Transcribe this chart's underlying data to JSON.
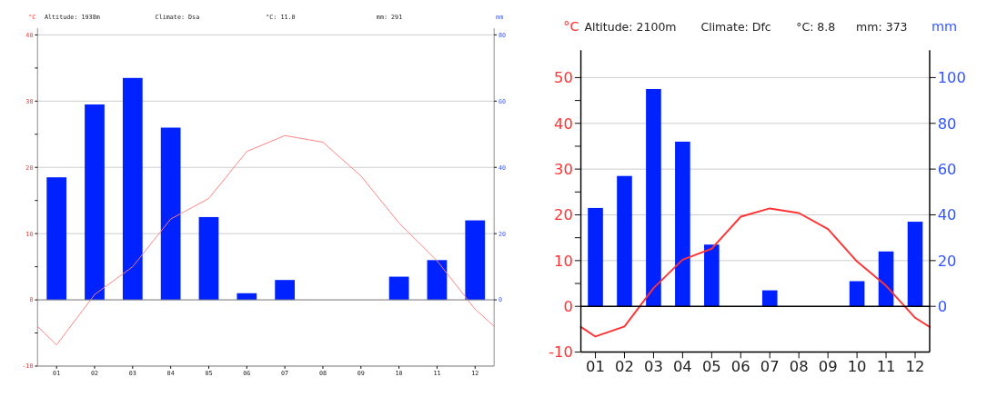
{
  "chart_data": [
    {
      "type": "bar",
      "annotations": [
        "Altitude: 1938m",
        "Climate: Dsa",
        "°C: 11.0",
        "mm: 291"
      ],
      "ylabel": "°C",
      "y2label": "mm",
      "grid": "y",
      "x": [
        1,
        2,
        3,
        4,
        5,
        6,
        7,
        8,
        9,
        10,
        11,
        12
      ],
      "xlim": [
        0.5,
        12.5
      ],
      "xticks": [
        {
          "value": 1,
          "label": "01"
        },
        {
          "value": 2,
          "label": "02"
        },
        {
          "value": 3,
          "label": "03"
        },
        {
          "value": 4,
          "label": "04"
        },
        {
          "value": 5,
          "label": "05"
        },
        {
          "value": 6,
          "label": "06"
        },
        {
          "value": 7,
          "label": "07"
        },
        {
          "value": 8,
          "label": "08"
        },
        {
          "value": 9,
          "label": "09"
        },
        {
          "value": 10,
          "label": "10"
        },
        {
          "value": 11,
          "label": "11"
        },
        {
          "value": 12,
          "label": "12"
        }
      ],
      "ylim": [
        -10,
        41
      ],
      "yticks": [
        -10,
        {
          "value": -5,
          "label": null
        },
        0,
        {
          "value": 5,
          "label": null
        },
        10,
        {
          "value": 15,
          "label": null
        },
        20,
        {
          "value": 25,
          "label": null
        },
        30,
        {
          "value": 35,
          "label": null
        },
        40
      ],
      "y2lim": [
        -20,
        82
      ],
      "y2ticks": [
        0,
        20,
        40,
        60,
        80
      ],
      "series": [
        {
          "axis": "y2",
          "color": "#0022ff",
          "values": [
            37,
            59,
            67,
            52,
            25,
            2,
            6,
            0,
            0,
            7,
            12,
            24
          ]
        },
        {
          "type": "line",
          "color": "#ff8080",
          "x": [
            0.5,
            1,
            2,
            3,
            4,
            5,
            6,
            7,
            8,
            9,
            10,
            11,
            12,
            12.5
          ],
          "values": [
            -4.0,
            -6.8,
            0.8,
            5.0,
            12.2,
            15.3,
            22.4,
            24.8,
            23.8,
            18.7,
            11.6,
            5.9,
            -1.4,
            -4.0
          ]
        }
      ]
    },
    {
      "type": "bar",
      "annotations": [
        "Altitude: 2100m",
        "Climate: Dfc",
        "°C: 8.8",
        "mm: 373"
      ],
      "ylabel": "°C",
      "y2label": "mm",
      "grid": "y",
      "x": [
        1,
        2,
        3,
        4,
        5,
        6,
        7,
        8,
        9,
        10,
        11,
        12
      ],
      "xlim": [
        0.5,
        12.5
      ],
      "xticks": [
        {
          "value": 1,
          "label": "01"
        },
        {
          "value": 2,
          "label": "02"
        },
        {
          "value": 3,
          "label": "03"
        },
        {
          "value": 4,
          "label": "04"
        },
        {
          "value": 5,
          "label": "05"
        },
        {
          "value": 6,
          "label": "06"
        },
        {
          "value": 7,
          "label": "07"
        },
        {
          "value": 8,
          "label": "08"
        },
        {
          "value": 9,
          "label": "09"
        },
        {
          "value": 10,
          "label": "10"
        },
        {
          "value": 11,
          "label": "11"
        },
        {
          "value": 12,
          "label": "12"
        }
      ],
      "ylim": [
        -10,
        56
      ],
      "yticks": [
        -10,
        0,
        {
          "value": 5,
          "label": null
        },
        10,
        {
          "value": 15,
          "label": null
        },
        20,
        {
          "value": 25,
          "label": null
        },
        30,
        {
          "value": 35,
          "label": null
        },
        40,
        {
          "value": 45,
          "label": null
        },
        50
      ],
      "y2lim": [
        -20,
        112
      ],
      "y2ticks": [
        0,
        20,
        40,
        60,
        80,
        100
      ],
      "series": [
        {
          "axis": "y2",
          "color": "#0022ff",
          "values": [
            43,
            57,
            95,
            72,
            27,
            0,
            7,
            0,
            0,
            11,
            24,
            37
          ]
        },
        {
          "type": "line",
          "color": "#ff3333",
          "x": [
            0.5,
            1,
            2,
            3,
            4,
            5,
            6,
            7,
            8,
            9,
            10,
            11,
            12,
            12.5
          ],
          "values": [
            -4.5,
            -6.6,
            -4.4,
            4.0,
            10.2,
            12.6,
            19.6,
            21.4,
            20.4,
            16.9,
            9.8,
            4.5,
            -2.5,
            -4.5
          ]
        }
      ]
    }
  ]
}
